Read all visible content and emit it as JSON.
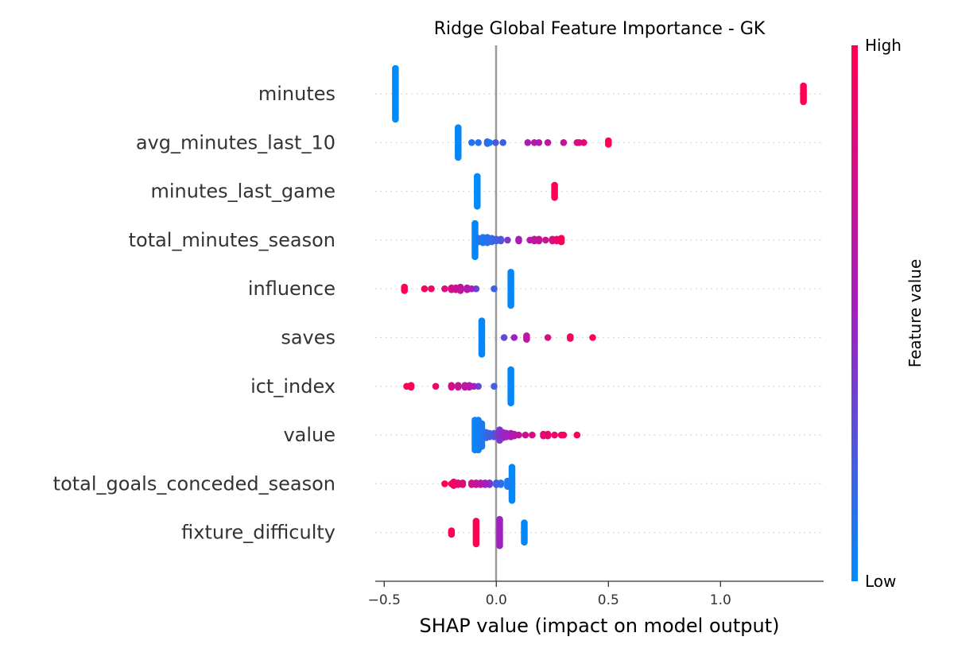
{
  "chart_data": {
    "type": "scatter",
    "title": "Ridge Global Feature Importance - GK",
    "xlabel": "SHAP value (impact on model output)",
    "xlim": [
      -0.54,
      1.46
    ],
    "xticks": [
      -0.5,
      0.0,
      0.5,
      1.0
    ],
    "xtick_labels": [
      "−0.5",
      "0.0",
      "0.5",
      "1.0"
    ],
    "zero_line": 0.0,
    "grid": false,
    "colorbar": {
      "title": "Feature value",
      "high_label": "High",
      "low_label": "Low",
      "low_color": "#008bfb",
      "high_color": "#ff0052",
      "mid_color": "#a020c0"
    },
    "features": [
      {
        "name": "minutes",
        "points": [
          [
            -0.45,
            0,
            30
          ],
          [
            1.37,
            1,
            10
          ]
        ]
      },
      {
        "name": "avg_minutes_last_10",
        "points": [
          [
            -0.17,
            0.02,
            18
          ],
          [
            -0.11,
            0.1,
            1
          ],
          [
            -0.08,
            0.12,
            1
          ],
          [
            -0.04,
            0.15,
            2
          ],
          [
            -0.03,
            0.08,
            1
          ],
          [
            -0.003,
            0.25,
            1
          ],
          [
            0.03,
            0.2,
            1
          ],
          [
            0.14,
            0.55,
            1
          ],
          [
            0.17,
            0.6,
            1
          ],
          [
            0.19,
            0.58,
            1
          ],
          [
            0.23,
            0.65,
            1
          ],
          [
            0.3,
            0.7,
            1
          ],
          [
            0.36,
            0.78,
            1
          ],
          [
            0.37,
            0.8,
            1
          ],
          [
            0.39,
            0.85,
            1
          ],
          [
            0.5,
            1,
            3
          ]
        ]
      },
      {
        "name": "minutes_last_game",
        "points": [
          [
            -0.085,
            0,
            18
          ],
          [
            0.26,
            1,
            8
          ]
        ]
      },
      {
        "name": "total_minutes_season",
        "points": [
          [
            -0.095,
            0.02,
            20
          ],
          [
            -0.08,
            0.08,
            3
          ],
          [
            -0.06,
            0.1,
            4
          ],
          [
            -0.04,
            0.12,
            4
          ],
          [
            -0.02,
            0.15,
            3
          ],
          [
            0.0,
            0.2,
            2
          ],
          [
            0.02,
            0.25,
            2
          ],
          [
            0.05,
            0.4,
            1
          ],
          [
            0.1,
            0.55,
            2
          ],
          [
            0.15,
            0.62,
            1
          ],
          [
            0.17,
            0.65,
            2
          ],
          [
            0.19,
            0.68,
            2
          ],
          [
            0.22,
            0.72,
            1
          ],
          [
            0.25,
            0.8,
            2
          ],
          [
            0.27,
            0.85,
            2
          ],
          [
            0.29,
            1,
            3
          ]
        ]
      },
      {
        "name": "influence",
        "points": [
          [
            0.065,
            0.02,
            20
          ],
          [
            -0.01,
            0.2,
            1
          ],
          [
            -0.09,
            0.3,
            1
          ],
          [
            -0.11,
            0.5,
            1
          ],
          [
            -0.13,
            0.6,
            2
          ],
          [
            -0.16,
            0.65,
            3
          ],
          [
            -0.18,
            0.7,
            2
          ],
          [
            -0.2,
            0.75,
            2
          ],
          [
            -0.23,
            0.8,
            1
          ],
          [
            -0.29,
            0.92,
            1
          ],
          [
            -0.32,
            0.95,
            1
          ],
          [
            -0.41,
            1,
            3
          ]
        ]
      },
      {
        "name": "saves",
        "points": [
          [
            -0.065,
            0.02,
            20
          ],
          [
            0.035,
            0.3,
            1
          ],
          [
            0.08,
            0.5,
            1
          ],
          [
            0.135,
            0.65,
            3
          ],
          [
            0.23,
            0.8,
            1
          ],
          [
            0.33,
            0.95,
            2
          ],
          [
            0.43,
            1,
            1
          ]
        ]
      },
      {
        "name": "ict_index",
        "points": [
          [
            0.065,
            0.02,
            20
          ],
          [
            -0.01,
            0.2,
            1
          ],
          [
            -0.08,
            0.3,
            1
          ],
          [
            -0.1,
            0.5,
            1
          ],
          [
            -0.12,
            0.6,
            2
          ],
          [
            -0.14,
            0.62,
            2
          ],
          [
            -0.17,
            0.7,
            2
          ],
          [
            -0.2,
            0.75,
            2
          ],
          [
            -0.27,
            0.9,
            1
          ],
          [
            -0.38,
            0.95,
            2
          ],
          [
            -0.4,
            1,
            1
          ]
        ]
      },
      {
        "name": "value",
        "points": [
          [
            -0.095,
            0.02,
            18
          ],
          [
            -0.08,
            0.05,
            18
          ],
          [
            -0.065,
            0.08,
            14
          ],
          [
            -0.045,
            0.15,
            4
          ],
          [
            -0.03,
            0.2,
            3
          ],
          [
            -0.01,
            0.25,
            3
          ],
          [
            0.0,
            0.3,
            2
          ],
          [
            0.015,
            0.4,
            7
          ],
          [
            0.03,
            0.45,
            4
          ],
          [
            0.045,
            0.5,
            3
          ],
          [
            0.065,
            0.55,
            3
          ],
          [
            0.08,
            0.6,
            2
          ],
          [
            0.1,
            0.65,
            1
          ],
          [
            0.13,
            0.72,
            1
          ],
          [
            0.16,
            0.78,
            1
          ],
          [
            0.21,
            0.85,
            2
          ],
          [
            0.23,
            0.88,
            2
          ],
          [
            0.26,
            0.9,
            1
          ],
          [
            0.29,
            0.93,
            1
          ],
          [
            0.3,
            0.95,
            1
          ],
          [
            0.36,
            1,
            1
          ]
        ]
      },
      {
        "name": "total_goals_conceded_season",
        "points": [
          [
            0.07,
            0.02,
            20
          ],
          [
            0.05,
            0.08,
            4
          ],
          [
            0.02,
            0.12,
            2
          ],
          [
            0.0,
            0.2,
            2
          ],
          [
            -0.03,
            0.4,
            2
          ],
          [
            -0.05,
            0.5,
            2
          ],
          [
            -0.07,
            0.6,
            2
          ],
          [
            -0.09,
            0.65,
            2
          ],
          [
            -0.11,
            0.72,
            2
          ],
          [
            -0.15,
            0.8,
            2
          ],
          [
            -0.17,
            0.85,
            2
          ],
          [
            -0.19,
            0.9,
            3
          ],
          [
            -0.2,
            0.92,
            1
          ],
          [
            -0.23,
            1,
            1
          ]
        ]
      },
      {
        "name": "fixture_difficulty",
        "points": [
          [
            0.125,
            0.02,
            12
          ],
          [
            0.015,
            0.5,
            16
          ],
          [
            -0.09,
            1,
            14
          ],
          [
            -0.2,
            1,
            3
          ]
        ]
      }
    ]
  }
}
